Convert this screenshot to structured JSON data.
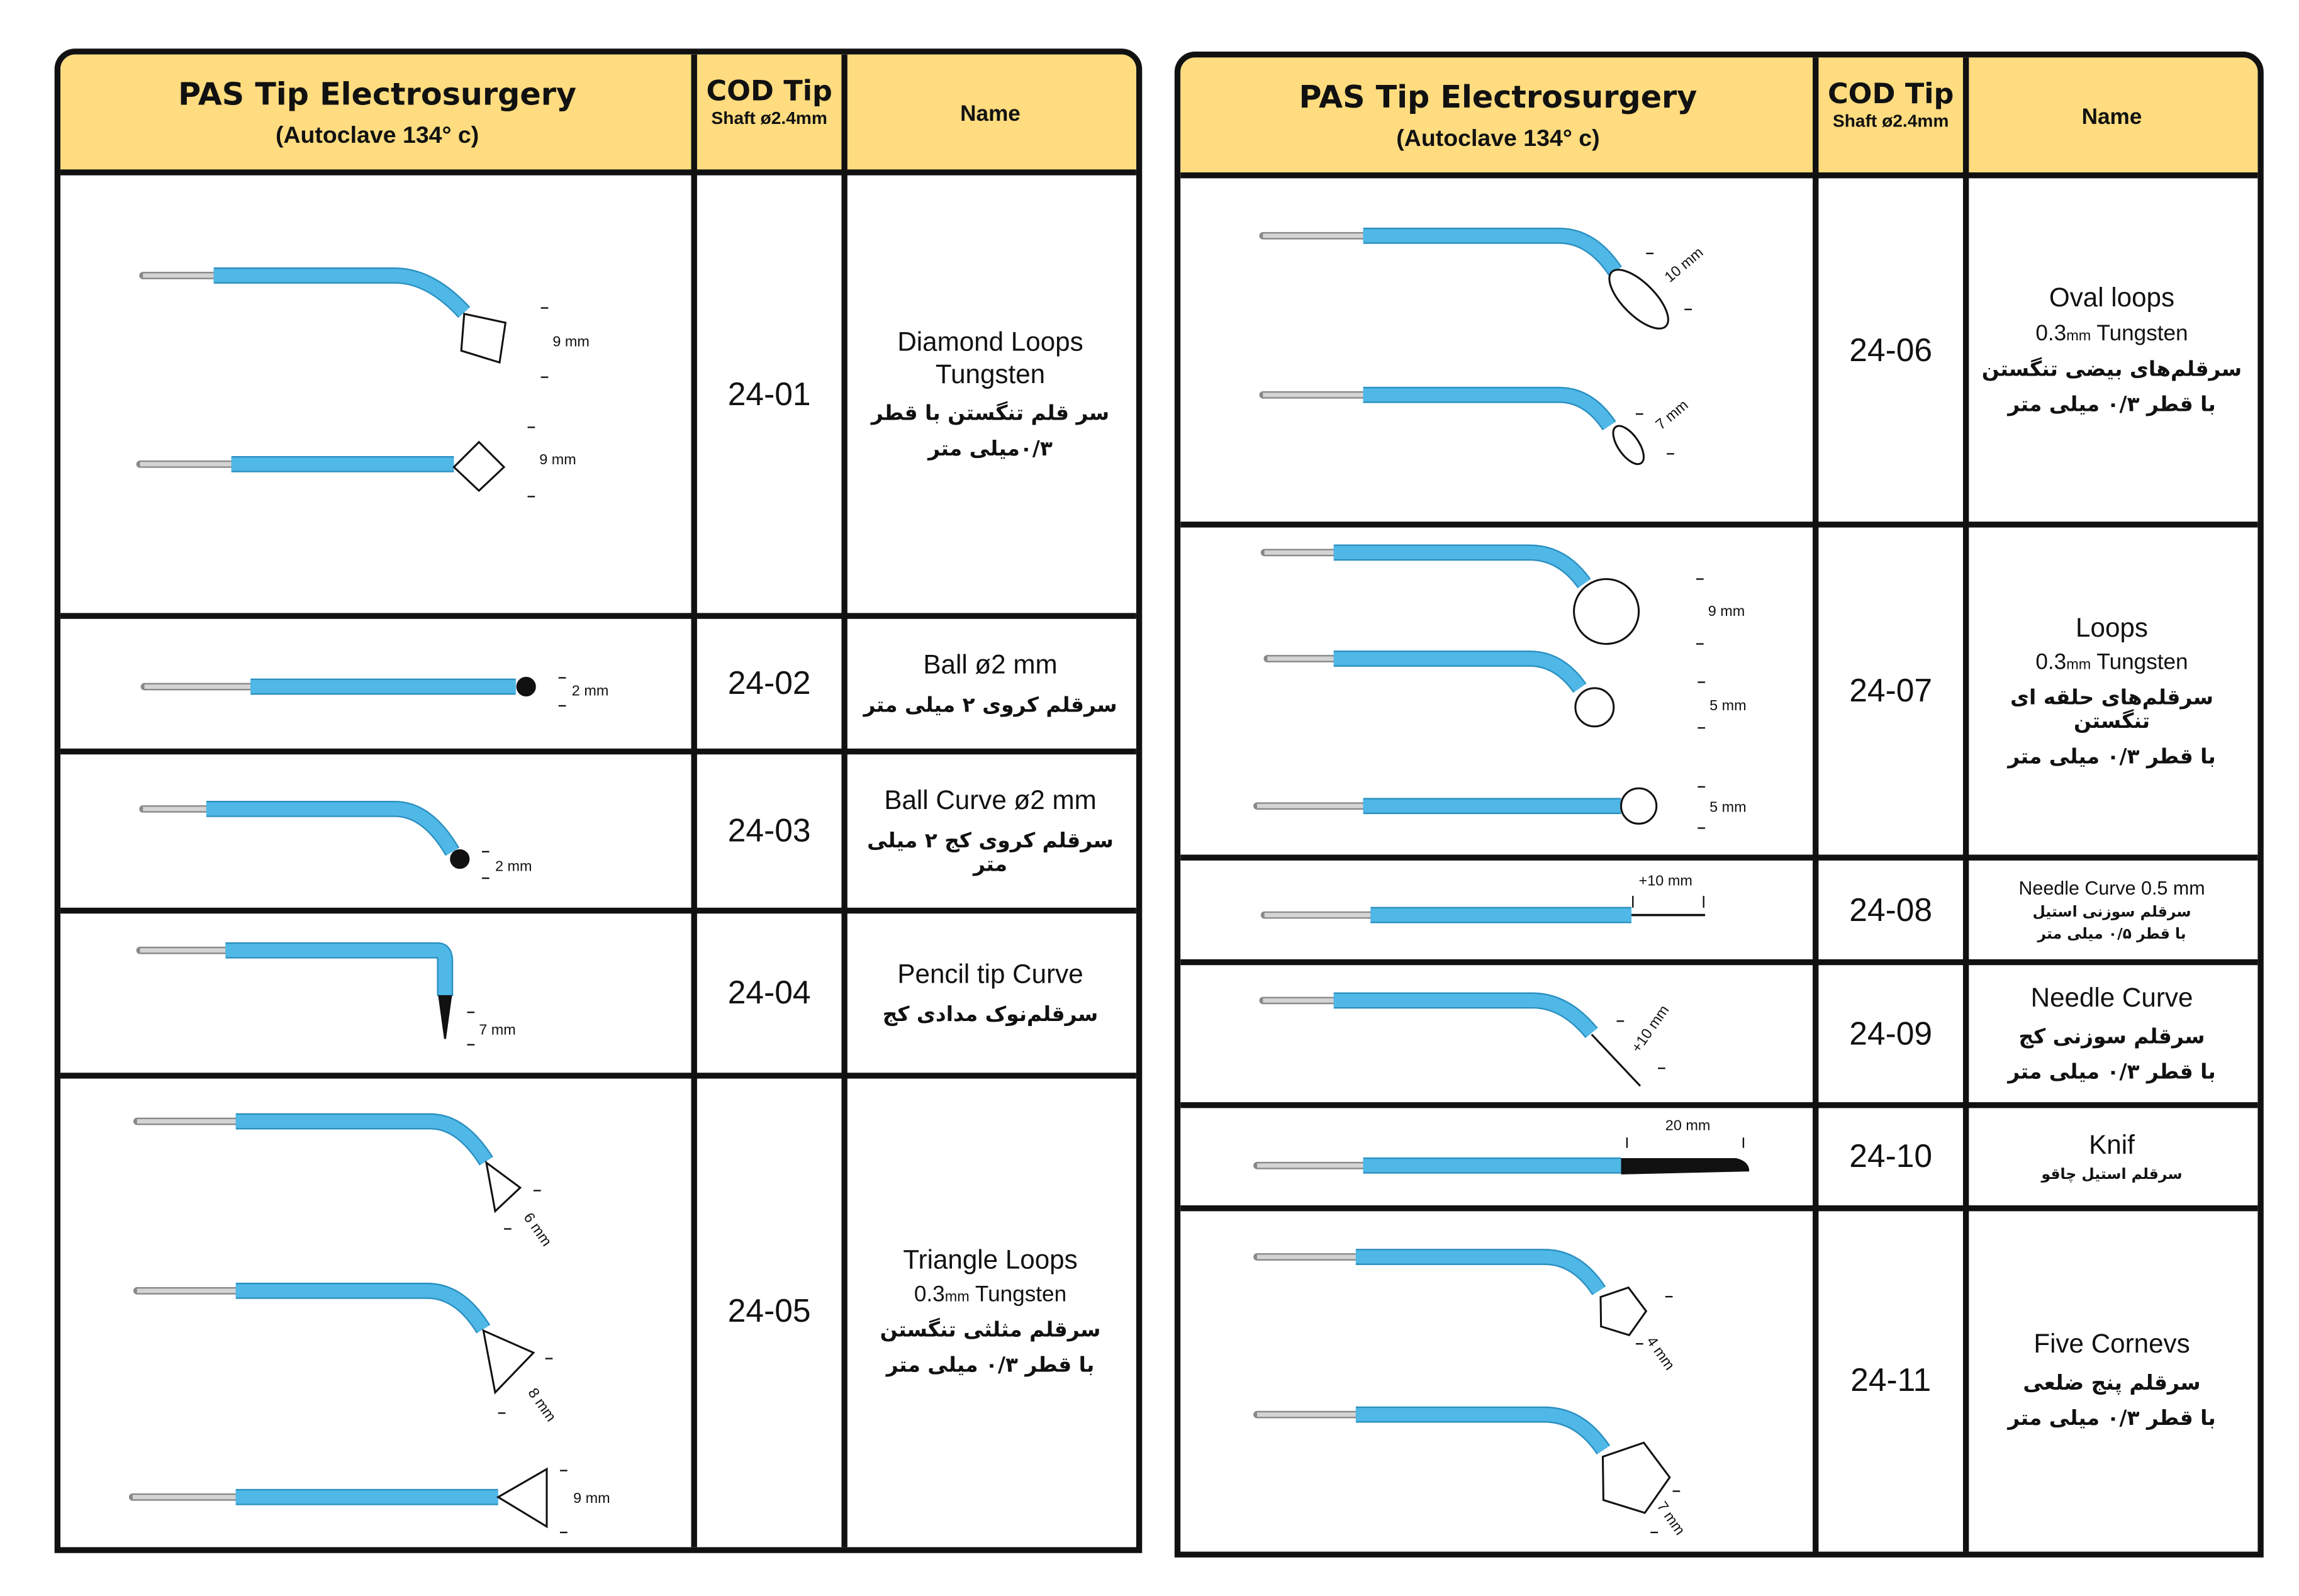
{
  "header": {
    "title": "PAS Tip Electrosurgery",
    "subtitle": "(Autoclave  134° c)",
    "cod_title": "COD Tip",
    "cod_sub": "Shaft ø2.4mm",
    "name_col": "Name"
  },
  "left_rows": [
    {
      "code": "24-01",
      "en": "Diamond Loops Tungsten",
      "en2": "",
      "fa": "سر قلم تنگستن با قطر",
      "fa2": "۰/۳میلی متر"
    },
    {
      "code": "24-02",
      "en": "Ball   ø2 mm",
      "en2": "",
      "fa": "سرقلم کروی ۲ میلی متر",
      "fa2": ""
    },
    {
      "code": "24-03",
      "en": "Ball Curve   ø2 mm",
      "en2": "",
      "fa": "سرقلم کروی کج ۲ میلی متر",
      "fa2": ""
    },
    {
      "code": "24-04",
      "en": "Pencil tip Curve",
      "en2": "",
      "fa": "سرقلم‌نوک مدادی کج",
      "fa2": ""
    },
    {
      "code": "24-05",
      "en": "Triangle Loops",
      "en2": "0.3mm Tungsten",
      "fa": "سرقلم مثلثی تنگستن",
      "fa2": "با قطر ۰/۳ میلی متر"
    }
  ],
  "right_rows": [
    {
      "code": "24-06",
      "en": "Oval loops",
      "en2": "0.3mm Tungsten",
      "fa": "سرقلم‌های بیضی تنگستن",
      "fa2": "با قطر ۰/۳ میلی متر"
    },
    {
      "code": "24-07",
      "en": "Loops",
      "en2": "0.3mm Tungsten",
      "fa": "سرقلم‌های حلقه ای تنگستن",
      "fa2": "با قطر ۰/۳ میلی متر"
    },
    {
      "code": "24-08",
      "en": "Needle Curve 0.5 mm",
      "en2": "",
      "fa": "سرقلم سوزنی استیل",
      "fa2": "با قطر ۰/۵ میلی متر"
    },
    {
      "code": "24-09",
      "en": "Needle Curve",
      "en2": "",
      "fa": "سرقلم سوزنی کج",
      "fa2": "با قطر ۰/۳ میلی متر"
    },
    {
      "code": "24-10",
      "en": "Knif",
      "en2": "",
      "fa": "سرقلم استیل چاقو",
      "fa2": ""
    },
    {
      "code": "24-11",
      "en": "Five Cornevs",
      "en2": "",
      "fa": "سرقلم پنج ضلعی",
      "fa2": "با قطر ۰/۳ میلی متر"
    }
  ],
  "dims": [
    "9 mm",
    "9 mm",
    "2 mm",
    "2 mm",
    "7 mm",
    "6 mm",
    "8 mm",
    "9 mm",
    "10 mm",
    "7 mm",
    "9 mm",
    "5 mm",
    "5 mm",
    "+10 mm",
    "+10 mm",
    "20 mm",
    "4 mm",
    "7 mm"
  ],
  "colors": {
    "header_bg": "#fedc7f",
    "electrode_blue": "#4fb8e6",
    "shaft_grey": "#d4d4d4"
  }
}
